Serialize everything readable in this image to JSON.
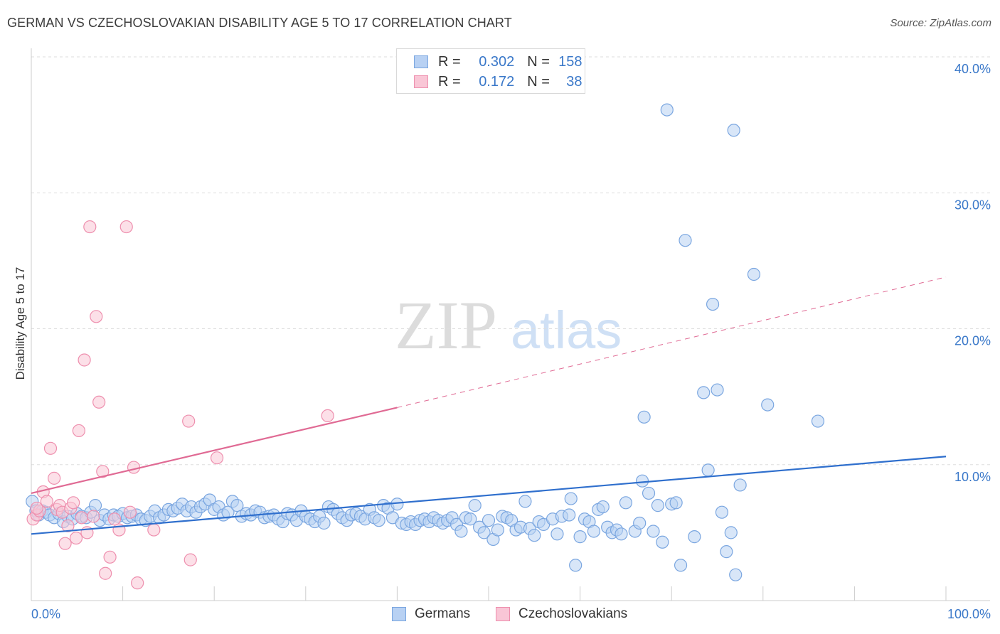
{
  "title": "GERMAN VS CZECHOSLOVAKIAN DISABILITY AGE 5 TO 17 CORRELATION CHART",
  "source": "Source: ZipAtlas.com",
  "watermark": {
    "zip": "ZIP",
    "atlas": "atlas"
  },
  "colors": {
    "germans_fill": "#b8d1f3",
    "germans_stroke": "#7aa6e0",
    "germans_line": "#2f6fcd",
    "czech_fill": "#f9c6d6",
    "czech_stroke": "#ee8fae",
    "czech_line": "#e06a94",
    "tick_label": "#3a78c9",
    "grid": "#dddddd"
  },
  "legend_top": [
    {
      "series": "germans",
      "r_label": "R =",
      "r_value": "0.302",
      "n_label": "N =",
      "n_value": "158"
    },
    {
      "series": "czech",
      "r_label": "R =",
      "r_value": "0.172",
      "n_label": "N =",
      "n_value": "38"
    }
  ],
  "legend_bottom": [
    "Germans",
    "Czechoslovakians"
  ],
  "chart_data": {
    "type": "scatter",
    "title": "GERMAN VS CZECHOSLOVAKIAN DISABILITY AGE 5 TO 17 CORRELATION CHART",
    "xlabel": "",
    "ylabel": "Disability Age 5 to 17",
    "xlim": [
      0,
      100
    ],
    "ylim": [
      0,
      40
    ],
    "x_tick_labels": [
      {
        "value": 0,
        "label": "0.0%"
      },
      {
        "value": 100,
        "label": "100.0%"
      }
    ],
    "y_tick_labels": [
      {
        "value": 10,
        "label": "10.0%"
      },
      {
        "value": 20,
        "label": "20.0%"
      },
      {
        "value": 30,
        "label": "30.0%"
      },
      {
        "value": 40,
        "label": "40.0%"
      }
    ],
    "grid": true,
    "legend_position": "top-center",
    "series": [
      {
        "name": "Germans",
        "color": "#b8d1f3",
        "points": [
          [
            0.1,
            7.3
          ],
          [
            0.5,
            6.6
          ],
          [
            0.8,
            6.3
          ],
          [
            1.2,
            6.6
          ],
          [
            1.6,
            6.5
          ],
          [
            2.0,
            6.3
          ],
          [
            2.5,
            6.1
          ],
          [
            3.0,
            6.4
          ],
          [
            3.5,
            5.8
          ],
          [
            4.0,
            6.2
          ],
          [
            4.5,
            6.0
          ],
          [
            5.0,
            6.4
          ],
          [
            5.5,
            6.2
          ],
          [
            6.0,
            6.1
          ],
          [
            6.5,
            6.5
          ],
          [
            7.0,
            7.0
          ],
          [
            7.5,
            5.9
          ],
          [
            8.0,
            6.3
          ],
          [
            8.5,
            6.0
          ],
          [
            9.0,
            6.3
          ],
          [
            9.5,
            6.2
          ],
          [
            10.0,
            6.4
          ],
          [
            10.5,
            6.1
          ],
          [
            11.0,
            6.2
          ],
          [
            11.5,
            6.3
          ],
          [
            12.0,
            6.0
          ],
          [
            12.5,
            5.9
          ],
          [
            13.0,
            6.2
          ],
          [
            13.5,
            6.6
          ],
          [
            14.0,
            6.1
          ],
          [
            14.5,
            6.3
          ],
          [
            15.0,
            6.7
          ],
          [
            15.5,
            6.6
          ],
          [
            16.0,
            6.8
          ],
          [
            16.5,
            7.1
          ],
          [
            17.0,
            6.6
          ],
          [
            17.5,
            6.9
          ],
          [
            18.0,
            6.5
          ],
          [
            18.5,
            6.9
          ],
          [
            19.0,
            7.1
          ],
          [
            19.5,
            7.4
          ],
          [
            20.0,
            6.7
          ],
          [
            20.5,
            6.9
          ],
          [
            21.0,
            6.3
          ],
          [
            21.5,
            6.5
          ],
          [
            22.0,
            7.3
          ],
          [
            22.5,
            7.0
          ],
          [
            23.0,
            6.2
          ],
          [
            23.5,
            6.4
          ],
          [
            24.0,
            6.3
          ],
          [
            24.5,
            6.6
          ],
          [
            25.0,
            6.5
          ],
          [
            25.5,
            6.1
          ],
          [
            26.0,
            6.2
          ],
          [
            26.5,
            6.3
          ],
          [
            27.0,
            6.0
          ],
          [
            27.5,
            5.8
          ],
          [
            28.0,
            6.4
          ],
          [
            28.5,
            6.3
          ],
          [
            29.0,
            5.9
          ],
          [
            29.5,
            6.6
          ],
          [
            30.0,
            6.2
          ],
          [
            30.5,
            6.0
          ],
          [
            31.0,
            5.8
          ],
          [
            31.5,
            6.2
          ],
          [
            32.0,
            5.7
          ],
          [
            32.5,
            6.9
          ],
          [
            33.0,
            6.7
          ],
          [
            33.5,
            6.4
          ],
          [
            34.0,
            6.1
          ],
          [
            34.5,
            5.9
          ],
          [
            35.0,
            6.3
          ],
          [
            35.5,
            6.4
          ],
          [
            36.0,
            6.2
          ],
          [
            36.5,
            6.0
          ],
          [
            37.0,
            6.7
          ],
          [
            37.5,
            6.1
          ],
          [
            38.0,
            5.9
          ],
          [
            38.5,
            7.0
          ],
          [
            39.0,
            6.8
          ],
          [
            39.5,
            6.1
          ],
          [
            40.0,
            7.1
          ],
          [
            40.5,
            5.7
          ],
          [
            41.0,
            5.6
          ],
          [
            41.5,
            5.8
          ],
          [
            42.0,
            5.6
          ],
          [
            42.5,
            5.9
          ],
          [
            43.0,
            6.0
          ],
          [
            43.5,
            5.8
          ],
          [
            44.0,
            6.1
          ],
          [
            44.5,
            5.9
          ],
          [
            45.0,
            5.7
          ],
          [
            45.5,
            5.9
          ],
          [
            46.0,
            6.1
          ],
          [
            46.5,
            5.6
          ],
          [
            47.0,
            5.1
          ],
          [
            47.5,
            6.1
          ],
          [
            48.0,
            6.0
          ],
          [
            48.5,
            7.0
          ],
          [
            49.0,
            5.4
          ],
          [
            49.5,
            5.0
          ],
          [
            50.0,
            5.9
          ],
          [
            50.5,
            4.5
          ],
          [
            51.0,
            5.2
          ],
          [
            51.5,
            6.2
          ],
          [
            52.0,
            6.1
          ],
          [
            52.5,
            5.9
          ],
          [
            53.0,
            5.2
          ],
          [
            53.5,
            5.4
          ],
          [
            54.0,
            7.3
          ],
          [
            54.5,
            5.3
          ],
          [
            55.0,
            4.8
          ],
          [
            55.5,
            5.8
          ],
          [
            56.0,
            5.6
          ],
          [
            57.0,
            6.0
          ],
          [
            57.5,
            4.9
          ],
          [
            58.0,
            6.2
          ],
          [
            59.0,
            7.5
          ],
          [
            59.5,
            2.6
          ],
          [
            60.0,
            4.7
          ],
          [
            60.5,
            6.0
          ],
          [
            61.0,
            5.8
          ],
          [
            61.5,
            5.1
          ],
          [
            62.0,
            6.7
          ],
          [
            62.5,
            6.9
          ],
          [
            63.0,
            5.4
          ],
          [
            63.5,
            5.0
          ],
          [
            64.0,
            5.2
          ],
          [
            64.5,
            4.9
          ],
          [
            65.0,
            7.2
          ],
          [
            66.0,
            5.1
          ],
          [
            66.5,
            5.7
          ],
          [
            66.8,
            8.8
          ],
          [
            67.0,
            13.5
          ],
          [
            67.5,
            7.9
          ],
          [
            68.0,
            5.1
          ],
          [
            68.5,
            7.0
          ],
          [
            69.0,
            4.3
          ],
          [
            69.5,
            36.1
          ],
          [
            70.0,
            7.1
          ],
          [
            70.5,
            7.2
          ],
          [
            71.0,
            2.6
          ],
          [
            71.5,
            26.5
          ],
          [
            72.5,
            4.7
          ],
          [
            73.5,
            15.3
          ],
          [
            74.0,
            9.6
          ],
          [
            74.5,
            21.8
          ],
          [
            75.0,
            15.5
          ],
          [
            75.5,
            6.5
          ],
          [
            76.0,
            3.6
          ],
          [
            76.5,
            5.0
          ],
          [
            76.8,
            34.6
          ],
          [
            77.0,
            1.9
          ],
          [
            77.5,
            8.5
          ],
          [
            79.0,
            24.0
          ],
          [
            80.5,
            14.4
          ],
          [
            86.0,
            13.2
          ],
          [
            58.8,
            6.3
          ]
        ]
      },
      {
        "name": "Czechoslovakians",
        "color": "#f9c6d6",
        "points": [
          [
            0.2,
            6.0
          ],
          [
            0.6,
            6.3
          ],
          [
            0.9,
            6.6
          ],
          [
            1.3,
            8.0
          ],
          [
            1.7,
            7.3
          ],
          [
            2.1,
            11.2
          ],
          [
            2.5,
            9.0
          ],
          [
            2.8,
            6.7
          ],
          [
            3.1,
            7.0
          ],
          [
            3.4,
            6.5
          ],
          [
            3.7,
            4.2
          ],
          [
            4.0,
            5.5
          ],
          [
            4.3,
            6.8
          ],
          [
            4.6,
            7.2
          ],
          [
            4.9,
            4.6
          ],
          [
            5.2,
            12.5
          ],
          [
            5.5,
            6.1
          ],
          [
            5.8,
            17.7
          ],
          [
            6.1,
            5.0
          ],
          [
            6.4,
            27.5
          ],
          [
            6.8,
            6.2
          ],
          [
            7.1,
            20.9
          ],
          [
            7.4,
            14.6
          ],
          [
            7.8,
            9.5
          ],
          [
            8.1,
            2.0
          ],
          [
            8.6,
            3.2
          ],
          [
            9.1,
            6.0
          ],
          [
            9.6,
            5.2
          ],
          [
            10.4,
            27.5
          ],
          [
            10.8,
            6.5
          ],
          [
            11.2,
            9.8
          ],
          [
            11.6,
            1.3
          ],
          [
            13.4,
            5.2
          ],
          [
            17.2,
            13.2
          ],
          [
            17.4,
            3.0
          ],
          [
            20.3,
            10.5
          ],
          [
            32.4,
            13.6
          ],
          [
            0.6,
            6.8
          ]
        ]
      }
    ],
    "trendlines": [
      {
        "series": "Germans",
        "x": [
          0,
          100
        ],
        "y": [
          4.9,
          10.6
        ],
        "style": "solid"
      },
      {
        "series": "Czechoslovakians",
        "x": [
          0,
          40
        ],
        "y": [
          7.9,
          14.2
        ],
        "style": "solid"
      },
      {
        "series": "Czechoslovakians",
        "x": [
          40,
          100
        ],
        "y": [
          14.2,
          23.8
        ],
        "style": "dashed"
      }
    ]
  }
}
